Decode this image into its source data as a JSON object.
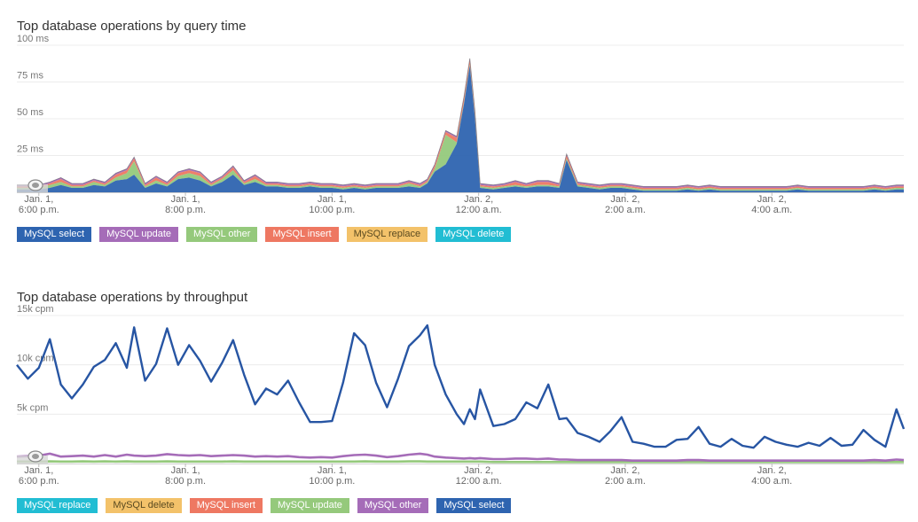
{
  "charts": [
    {
      "title": "Top database operations by query time",
      "legend": [
        {
          "label": "MySQL select",
          "color": "#2e64b0",
          "text_color": "#ffffff"
        },
        {
          "label": "MySQL update",
          "color": "#a56cb8",
          "text_color": "#ffffff"
        },
        {
          "label": "MySQL other",
          "color": "#95c97c",
          "text_color": "#ffffff"
        },
        {
          "label": "MySQL insert",
          "color": "#ee7862",
          "text_color": "#ffffff"
        },
        {
          "label": "MySQL replace",
          "color": "#f3c26a",
          "text_color": "#5a4a20"
        },
        {
          "label": "MySQL delete",
          "color": "#21bdd3",
          "text_color": "#ffffff"
        }
      ]
    },
    {
      "title": "Top database operations by throughput",
      "legend": [
        {
          "label": "MySQL replace",
          "color": "#21bdd3",
          "text_color": "#ffffff"
        },
        {
          "label": "MySQL delete",
          "color": "#f3c26a",
          "text_color": "#5a4a20"
        },
        {
          "label": "MySQL insert",
          "color": "#ee7862",
          "text_color": "#ffffff"
        },
        {
          "label": "MySQL update",
          "color": "#95c97c",
          "text_color": "#ffffff"
        },
        {
          "label": "MySQL other",
          "color": "#a56cb8",
          "text_color": "#ffffff"
        },
        {
          "label": "MySQL select",
          "color": "#2e64b0",
          "text_color": "#ffffff"
        }
      ]
    }
  ],
  "chart_data": [
    {
      "type": "area",
      "title": "Top database operations by query time",
      "ylim": [
        0,
        100
      ],
      "yticks": [
        {
          "v": 25,
          "label": "25 ms"
        },
        {
          "v": 50,
          "label": "50 ms"
        },
        {
          "v": 75,
          "label": "75 ms"
        },
        {
          "v": 100,
          "label": "100 ms"
        }
      ],
      "xlim": [
        17.7,
        29.8
      ],
      "xticks": [
        {
          "v": 18,
          "line1": "Jan. 1,",
          "line2": "6:00 p.m."
        },
        {
          "v": 20,
          "line1": "Jan. 1,",
          "line2": "8:00 p.m."
        },
        {
          "v": 22,
          "line1": "Jan. 1,",
          "line2": "10:00 p.m."
        },
        {
          "v": 24,
          "line1": "Jan. 2,",
          "line2": "12:00 a.m."
        },
        {
          "v": 26,
          "line1": "Jan. 2,",
          "line2": "2:00 a.m."
        },
        {
          "v": 28,
          "line1": "Jan. 2,",
          "line2": "4:00 a.m."
        }
      ],
      "grid": true,
      "legend_position": "bottom-left",
      "x": [
        17.7,
        17.85,
        18.0,
        18.15,
        18.3,
        18.45,
        18.6,
        18.75,
        18.9,
        19.05,
        19.2,
        19.3,
        19.45,
        19.6,
        19.75,
        19.9,
        20.05,
        20.2,
        20.35,
        20.5,
        20.65,
        20.8,
        20.95,
        21.1,
        21.25,
        21.4,
        21.55,
        21.7,
        21.85,
        22.0,
        22.15,
        22.3,
        22.45,
        22.6,
        22.75,
        22.9,
        23.05,
        23.2,
        23.3,
        23.4,
        23.55,
        23.7,
        23.8,
        23.88,
        23.95,
        24.02,
        24.2,
        24.35,
        24.5,
        24.65,
        24.8,
        24.95,
        25.1,
        25.2,
        25.35,
        25.5,
        25.65,
        25.8,
        25.95,
        26.1,
        26.25,
        26.4,
        26.55,
        26.7,
        26.85,
        27.0,
        27.15,
        27.3,
        27.45,
        27.6,
        27.75,
        27.9,
        28.05,
        28.2,
        28.35,
        28.5,
        28.65,
        28.8,
        28.95,
        29.1,
        29.25,
        29.4,
        29.55,
        29.7,
        29.8
      ],
      "series": [
        {
          "name": "MySQL select",
          "color": "#2e64b0",
          "values": [
            2,
            2,
            2,
            3,
            5,
            3,
            3,
            5,
            4,
            8,
            9,
            12,
            3,
            6,
            4,
            9,
            10,
            8,
            4,
            7,
            12,
            5,
            7,
            4,
            4,
            3,
            3,
            4,
            3,
            3,
            2,
            3,
            2,
            3,
            3,
            3,
            4,
            3,
            6,
            14,
            19,
            33,
            60,
            86,
            50,
            3,
            2,
            3,
            4,
            3,
            4,
            4,
            3,
            22,
            4,
            3,
            2,
            3,
            3,
            2,
            1,
            1,
            1,
            1,
            2,
            1,
            2,
            1,
            1,
            1,
            1,
            1,
            1,
            1,
            2,
            1,
            1,
            1,
            1,
            1,
            1,
            2,
            1,
            2,
            2
          ]
        },
        {
          "name": "MySQL other",
          "color": "#95c97c",
          "values": [
            1,
            1,
            1,
            2,
            2,
            1,
            1,
            2,
            1,
            2,
            4,
            9,
            1,
            2,
            1,
            2,
            3,
            3,
            1,
            2,
            3,
            1,
            2,
            1,
            1,
            1,
            1,
            1,
            1,
            1,
            1,
            1,
            1,
            1,
            1,
            1,
            2,
            1,
            1,
            2,
            20,
            1,
            1,
            1,
            1,
            1,
            1,
            1,
            1,
            1,
            1,
            1,
            1,
            1,
            1,
            1,
            1,
            1,
            1,
            1,
            1,
            1,
            1,
            1,
            1,
            1,
            1,
            1,
            1,
            1,
            1,
            1,
            1,
            1,
            1,
            1,
            1,
            1,
            1,
            1,
            1,
            1,
            1,
            1,
            1
          ]
        },
        {
          "name": "MySQL insert",
          "color": "#ee7862",
          "values": [
            1,
            1,
            1,
            1,
            2,
            1,
            1,
            1,
            1,
            2,
            2,
            2,
            1,
            2,
            1,
            2,
            2,
            2,
            1,
            1,
            2,
            1,
            2,
            1,
            1,
            1,
            1,
            1,
            1,
            1,
            1,
            1,
            1,
            1,
            1,
            1,
            1,
            1,
            1,
            2,
            2,
            3,
            3,
            3,
            3,
            1,
            1,
            1,
            2,
            1,
            2,
            2,
            1,
            2,
            1,
            1,
            1,
            1,
            1,
            1,
            1,
            1,
            1,
            1,
            1,
            1,
            1,
            1,
            1,
            1,
            1,
            1,
            1,
            1,
            1,
            1,
            1,
            1,
            1,
            1,
            1,
            1,
            1,
            1,
            1
          ]
        },
        {
          "name": "MySQL update",
          "color": "#a56cb8",
          "values": [
            1,
            1,
            1,
            1,
            1,
            1,
            1,
            1,
            1,
            1,
            1,
            1,
            1,
            1,
            1,
            1,
            1,
            1,
            1,
            1,
            1,
            1,
            1,
            1,
            1,
            1,
            1,
            1,
            1,
            1,
            1,
            1,
            1,
            1,
            1,
            1,
            1,
            1,
            1,
            1,
            1,
            1,
            1,
            1,
            1,
            1,
            1,
            1,
            1,
            1,
            1,
            1,
            1,
            1,
            1,
            1,
            1,
            1,
            1,
            1,
            1,
            1,
            1,
            1,
            1,
            1,
            1,
            1,
            1,
            1,
            1,
            1,
            1,
            1,
            1,
            1,
            1,
            1,
            1,
            1,
            1,
            1,
            1,
            1,
            1
          ]
        }
      ]
    },
    {
      "type": "line",
      "title": "Top database operations by throughput",
      "ylim": [
        0,
        15000
      ],
      "yticks": [
        {
          "v": 5000,
          "label": "5k cpm"
        },
        {
          "v": 10000,
          "label": "10k cpm"
        },
        {
          "v": 15000,
          "label": "15k cpm"
        }
      ],
      "xlim": [
        17.7,
        29.8
      ],
      "xticks": [
        {
          "v": 18,
          "line1": "Jan. 1,",
          "line2": "6:00 p.m."
        },
        {
          "v": 20,
          "line1": "Jan. 1,",
          "line2": "8:00 p.m."
        },
        {
          "v": 22,
          "line1": "Jan. 1,",
          "line2": "10:00 p.m."
        },
        {
          "v": 24,
          "line1": "Jan. 2,",
          "line2": "12:00 a.m."
        },
        {
          "v": 26,
          "line1": "Jan. 2,",
          "line2": "2:00 a.m."
        },
        {
          "v": 28,
          "line1": "Jan. 2,",
          "line2": "4:00 a.m."
        }
      ],
      "grid": true,
      "legend_position": "bottom-left",
      "x": [
        17.7,
        17.85,
        18.0,
        18.15,
        18.3,
        18.45,
        18.6,
        18.75,
        18.9,
        19.05,
        19.2,
        19.3,
        19.45,
        19.6,
        19.75,
        19.9,
        20.05,
        20.2,
        20.35,
        20.5,
        20.65,
        20.8,
        20.95,
        21.1,
        21.25,
        21.4,
        21.55,
        21.7,
        21.85,
        22.0,
        22.15,
        22.3,
        22.45,
        22.6,
        22.75,
        22.9,
        23.05,
        23.2,
        23.3,
        23.4,
        23.55,
        23.7,
        23.8,
        23.88,
        23.95,
        24.02,
        24.2,
        24.35,
        24.5,
        24.65,
        24.8,
        24.95,
        25.1,
        25.2,
        25.35,
        25.5,
        25.65,
        25.8,
        25.95,
        26.1,
        26.25,
        26.4,
        26.55,
        26.7,
        26.85,
        27.0,
        27.15,
        27.3,
        27.45,
        27.6,
        27.75,
        27.9,
        28.05,
        28.2,
        28.35,
        28.5,
        28.65,
        28.8,
        28.95,
        29.1,
        29.25,
        29.4,
        29.55,
        29.7,
        29.8
      ],
      "series": [
        {
          "name": "MySQL select",
          "color": "#2755a3",
          "values": [
            10000,
            8600,
            9700,
            12600,
            8000,
            6600,
            8000,
            9800,
            10500,
            12200,
            9700,
            13800,
            8400,
            10100,
            13700,
            10000,
            12000,
            10400,
            8300,
            10200,
            12500,
            9000,
            6000,
            7600,
            7000,
            8400,
            6200,
            4200,
            4200,
            4300,
            8200,
            13200,
            12000,
            8200,
            5700,
            8600,
            11900,
            13000,
            14000,
            10000,
            7000,
            5000,
            4000,
            5500,
            4500,
            7500,
            3800,
            4000,
            4500,
            6200,
            5600,
            8000,
            4500,
            4600,
            3100,
            2700,
            2200,
            3300,
            4700,
            2200,
            2000,
            1700,
            1700,
            2400,
            2500,
            3700,
            2000,
            1700,
            2500,
            1800,
            1600,
            2700,
            2200,
            1900,
            1700,
            2100,
            1800,
            2600,
            1800,
            1900,
            3400,
            2400,
            1700,
            5500,
            3500
          ]
        },
        {
          "name": "MySQL other",
          "color": "#a56cb8",
          "values": [
            700,
            750,
            800,
            1000,
            700,
            750,
            800,
            700,
            850,
            700,
            900,
            800,
            750,
            800,
            950,
            850,
            800,
            850,
            750,
            800,
            850,
            800,
            700,
            750,
            700,
            750,
            650,
            600,
            650,
            600,
            750,
            850,
            900,
            800,
            650,
            750,
            900,
            1000,
            900,
            700,
            600,
            550,
            500,
            550,
            500,
            550,
            450,
            450,
            500,
            500,
            450,
            500,
            400,
            400,
            350,
            350,
            350,
            350,
            350,
            300,
            300,
            300,
            300,
            300,
            350,
            350,
            300,
            300,
            300,
            300,
            300,
            300,
            300,
            300,
            300,
            300,
            300,
            300,
            300,
            300,
            300,
            350,
            300,
            400,
            350
          ]
        },
        {
          "name": "MySQL update",
          "color": "#95c97c",
          "values": [
            200,
            200,
            200,
            220,
            200,
            200,
            220,
            200,
            220,
            200,
            220,
            200,
            200,
            200,
            220,
            200,
            200,
            200,
            200,
            200,
            220,
            200,
            200,
            200,
            200,
            200,
            200,
            200,
            200,
            200,
            200,
            200,
            220,
            200,
            200,
            200,
            220,
            220,
            200,
            200,
            200,
            200,
            200,
            200,
            200,
            200,
            150,
            150,
            150,
            150,
            150,
            150,
            150,
            150,
            150,
            150,
            150,
            150,
            150,
            150,
            150,
            150,
            150,
            150,
            150,
            150,
            150,
            150,
            150,
            150,
            150,
            150,
            150,
            150,
            150,
            150,
            150,
            150,
            150,
            150,
            150,
            150,
            150,
            150,
            150
          ]
        }
      ]
    }
  ]
}
